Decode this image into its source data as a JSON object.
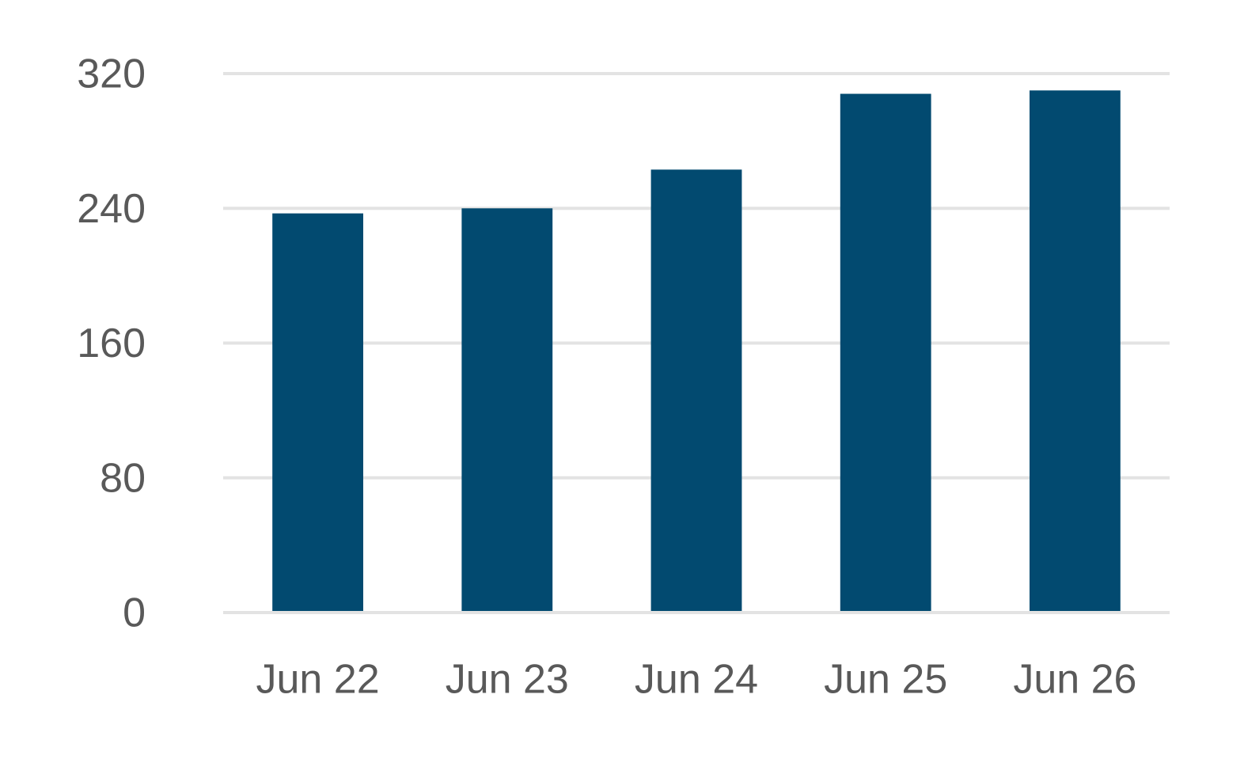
{
  "chart_data": {
    "type": "bar",
    "categories": [
      "Jun 22",
      "Jun 23",
      "Jun 24",
      "Jun 25",
      "Jun 26"
    ],
    "values": [
      237,
      240,
      263,
      308,
      310
    ],
    "color": "#024a70",
    "ylim": [
      0,
      320
    ],
    "yticks": [
      0,
      80,
      160,
      240,
      320
    ],
    "grid": true
  }
}
